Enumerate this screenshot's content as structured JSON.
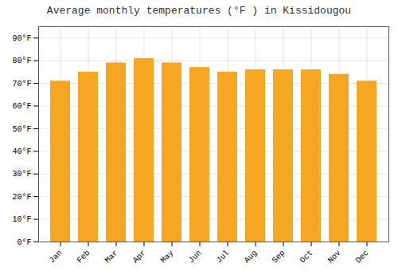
{
  "chart_data": {
    "type": "bar",
    "title": "Average monthly temperatures (°F ) in Kissidougou",
    "categories": [
      "Jan",
      "Feb",
      "Mar",
      "Apr",
      "May",
      "Jun",
      "Jul",
      "Aug",
      "Sep",
      "Oct",
      "Nov",
      "Dec"
    ],
    "values": [
      71,
      75,
      79,
      81,
      79,
      77,
      75,
      76,
      76,
      76,
      74,
      71
    ],
    "color": "#F5A623",
    "ylim": [
      0,
      95
    ],
    "yticks": [
      {
        "value": 0,
        "label": "0°F"
      },
      {
        "value": 10,
        "label": "10°F"
      },
      {
        "value": 20,
        "label": "20°F"
      },
      {
        "value": 30,
        "label": "30°F"
      },
      {
        "value": 40,
        "label": "40°F"
      },
      {
        "value": 50,
        "label": "50°F"
      },
      {
        "value": 60,
        "label": "60°F"
      },
      {
        "value": 70,
        "label": "70°F"
      },
      {
        "value": 80,
        "label": "80°F"
      },
      {
        "value": 90,
        "label": "90°F"
      }
    ],
    "grid": true
  }
}
